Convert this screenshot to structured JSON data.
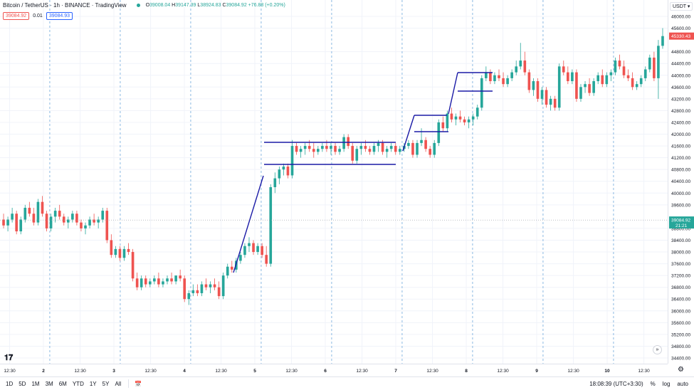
{
  "header": {
    "symbol_title": "Bitcoin / TetherUS · 1h · BINANCE · TradingView",
    "ohlc": {
      "o": "39008.04",
      "h": "39147.39",
      "l": "38924.83",
      "c": "39084.92",
      "change": "+76.88 (+0.20%)"
    },
    "sell_price": "39084.92",
    "spread": "0.01",
    "buy_price": "39084.93",
    "currency": "USDT"
  },
  "colors": {
    "up": "#26a69a",
    "down": "#ef5350",
    "drawing": "#1a1aa6",
    "grid": "#f0f3fa",
    "session": "#6fa8dc"
  },
  "price_axis": {
    "ticks": [
      "46000.00",
      "45600.00",
      "44800.00",
      "44400.00",
      "44000.00",
      "43600.00",
      "43200.00",
      "42800.00",
      "42400.00",
      "42000.00",
      "41600.00",
      "41200.00",
      "40800.00",
      "40400.00",
      "40000.00",
      "39600.00",
      "38800.00",
      "38400.00",
      "38000.00",
      "37600.00",
      "37200.00",
      "36800.00",
      "36400.00",
      "36000.00",
      "35600.00",
      "35200.00",
      "34800.00",
      "34400.00"
    ],
    "last_price_tag": "45330.43",
    "crosshair_price": "39084.92",
    "crosshair_time": "21:21"
  },
  "time_axis": {
    "labels": [
      {
        "t": "12:30",
        "h": 12.5
      },
      {
        "t": "2",
        "h": 24
      },
      {
        "t": "12:30",
        "h": 36.5
      },
      {
        "t": "3",
        "h": 48
      },
      {
        "t": "12:30",
        "h": 60.5
      },
      {
        "t": "4",
        "h": 72
      },
      {
        "t": "12:30",
        "h": 84.5
      },
      {
        "t": "5",
        "h": 96
      },
      {
        "t": "12:30",
        "h": 108.5
      },
      {
        "t": "6",
        "h": 120
      },
      {
        "t": "12:30",
        "h": 132.5
      },
      {
        "t": "7",
        "h": 144
      },
      {
        "t": "12:30",
        "h": 156.5
      },
      {
        "t": "8",
        "h": 168
      },
      {
        "t": "12:30",
        "h": 180.5
      },
      {
        "t": "9",
        "h": 192
      },
      {
        "t": "12:30",
        "h": 204.5
      },
      {
        "t": "10",
        "h": 216
      },
      {
        "t": "12:30",
        "h": 228.5
      }
    ]
  },
  "bottom_bar": {
    "timeframes": [
      "1D",
      "5D",
      "1M",
      "3M",
      "6M",
      "YTD",
      "1Y",
      "5Y",
      "All"
    ],
    "clock": "18:08:39 (UTC+3:30)",
    "percent": "%",
    "log": "log",
    "auto": "auto"
  },
  "chart_data": {
    "type": "candlestick",
    "symbol": "Bitcoin / TetherUS",
    "interval": "1h",
    "ylim": [
      34000,
      46600
    ],
    "x_unit": "hours",
    "candles": [
      [
        39100,
        39300,
        38800,
        38900
      ],
      [
        38900,
        39200,
        38700,
        39100
      ],
      [
        39100,
        39500,
        39000,
        39300
      ],
      [
        39300,
        39400,
        38600,
        38700
      ],
      [
        38700,
        39200,
        38600,
        39100
      ],
      [
        39100,
        39600,
        39000,
        39500
      ],
      [
        39500,
        39700,
        39200,
        39300
      ],
      [
        39300,
        39500,
        38900,
        39000
      ],
      [
        39000,
        39800,
        38900,
        39700
      ],
      [
        39700,
        39900,
        39200,
        39300
      ],
      [
        39300,
        39400,
        38700,
        38800
      ],
      [
        38800,
        39300,
        38700,
        39200
      ],
      [
        39200,
        39500,
        39000,
        39400
      ],
      [
        39400,
        39600,
        39100,
        39200
      ],
      [
        39200,
        39300,
        38900,
        39000
      ],
      [
        39000,
        39200,
        38800,
        39100
      ],
      [
        39100,
        39400,
        39000,
        39300
      ],
      [
        39300,
        39400,
        38900,
        39000
      ],
      [
        39000,
        39100,
        38700,
        38800
      ],
      [
        38800,
        39000,
        38600,
        38900
      ],
      [
        38900,
        39200,
        38800,
        39100
      ],
      [
        39100,
        39300,
        38900,
        39000
      ],
      [
        39000,
        39200,
        38800,
        39100
      ],
      [
        39100,
        39500,
        39000,
        39400
      ],
      [
        39400,
        39500,
        38300,
        38400
      ],
      [
        38400,
        38600,
        37800,
        37900
      ],
      [
        37900,
        38200,
        37800,
        38100
      ],
      [
        38100,
        38200,
        37700,
        37800
      ],
      [
        37800,
        38200,
        37700,
        38100
      ],
      [
        38100,
        38300,
        37900,
        38000
      ],
      [
        38000,
        38100,
        37000,
        37100
      ],
      [
        37100,
        37300,
        36700,
        36800
      ],
      [
        36800,
        37200,
        36700,
        37100
      ],
      [
        37100,
        37200,
        36800,
        36900
      ],
      [
        36900,
        37100,
        36800,
        37000
      ],
      [
        37000,
        37200,
        36900,
        37100
      ],
      [
        37100,
        37300,
        36800,
        36900
      ],
      [
        36900,
        37100,
        36800,
        37000
      ],
      [
        37000,
        37200,
        36900,
        37100
      ],
      [
        37100,
        37300,
        36900,
        37000
      ],
      [
        37000,
        37200,
        36900,
        37200
      ],
      [
        37200,
        37400,
        37000,
        37100
      ],
      [
        37100,
        37200,
        36300,
        36400
      ],
      [
        36400,
        36700,
        36200,
        36600
      ],
      [
        36600,
        36900,
        36500,
        36700
      ],
      [
        36700,
        36900,
        36500,
        36600
      ],
      [
        36600,
        37000,
        36500,
        36900
      ],
      [
        36900,
        37100,
        36700,
        36800
      ],
      [
        36800,
        37000,
        36600,
        36900
      ],
      [
        36900,
        37100,
        36700,
        36800
      ],
      [
        36800,
        37000,
        36400,
        36500
      ],
      [
        36500,
        37300,
        36400,
        37200
      ],
      [
        37200,
        37600,
        37100,
        37500
      ],
      [
        37500,
        37700,
        37300,
        37400
      ],
      [
        37400,
        37800,
        37300,
        37700
      ],
      [
        37700,
        38000,
        37600,
        37900
      ],
      [
        37900,
        38300,
        37800,
        38200
      ],
      [
        38200,
        38500,
        38000,
        38300
      ],
      [
        38300,
        38400,
        37900,
        38000
      ],
      [
        38000,
        38300,
        37900,
        38200
      ],
      [
        38200,
        38300,
        37800,
        37900
      ],
      [
        37900,
        38200,
        37500,
        37600
      ],
      [
        37600,
        40300,
        37500,
        40200
      ],
      [
        40200,
        40700,
        40000,
        40500
      ],
      [
        40500,
        40900,
        40300,
        40800
      ],
      [
        40800,
        41000,
        40600,
        40900
      ],
      [
        40900,
        41000,
        40500,
        40600
      ],
      [
        40600,
        41800,
        40500,
        41600
      ],
      [
        41600,
        41700,
        41300,
        41400
      ],
      [
        41400,
        41600,
        41200,
        41500
      ],
      [
        41500,
        41700,
        41300,
        41600
      ],
      [
        41600,
        41800,
        41400,
        41500
      ],
      [
        41500,
        41700,
        41200,
        41400
      ],
      [
        41400,
        41600,
        41300,
        41500
      ],
      [
        41500,
        41700,
        41400,
        41600
      ],
      [
        41600,
        41800,
        41400,
        41500
      ],
      [
        41500,
        41700,
        41300,
        41600
      ],
      [
        41600,
        41700,
        41300,
        41400
      ],
      [
        41400,
        41600,
        41300,
        41500
      ],
      [
        41500,
        42000,
        41400,
        41900
      ],
      [
        41900,
        42000,
        41500,
        41600
      ],
      [
        41600,
        41700,
        41000,
        41100
      ],
      [
        41100,
        41600,
        41000,
        41500
      ],
      [
        41500,
        41700,
        41300,
        41600
      ],
      [
        41600,
        41800,
        41400,
        41500
      ],
      [
        41500,
        41600,
        41300,
        41400
      ],
      [
        41400,
        41700,
        41300,
        41600
      ],
      [
        41600,
        41800,
        41400,
        41700
      ],
      [
        41700,
        41800,
        41300,
        41400
      ],
      [
        41400,
        41600,
        41200,
        41500
      ],
      [
        41500,
        41700,
        41400,
        41600
      ],
      [
        41600,
        41700,
        41300,
        41400
      ],
      [
        41400,
        41600,
        41300,
        41500
      ],
      [
        41500,
        41700,
        41400,
        41600
      ],
      [
        41600,
        41800,
        41500,
        41700
      ],
      [
        41700,
        41800,
        41200,
        41300
      ],
      [
        41300,
        41800,
        41200,
        41700
      ],
      [
        41700,
        42200,
        41600,
        41800
      ],
      [
        41800,
        41900,
        41400,
        41500
      ],
      [
        41500,
        41600,
        41200,
        41300
      ],
      [
        41300,
        41800,
        41200,
        41700
      ],
      [
        41700,
        42500,
        41600,
        42400
      ],
      [
        42400,
        42600,
        42100,
        42200
      ],
      [
        42200,
        42800,
        42100,
        42700
      ],
      [
        42700,
        42900,
        42400,
        42500
      ],
      [
        42500,
        42700,
        42300,
        42600
      ],
      [
        42600,
        42800,
        42400,
        42500
      ],
      [
        42500,
        42600,
        42300,
        42400
      ],
      [
        42400,
        42600,
        42200,
        42500
      ],
      [
        42500,
        42700,
        42300,
        42600
      ],
      [
        42600,
        43000,
        42500,
        42900
      ],
      [
        42900,
        44000,
        42800,
        43900
      ],
      [
        43900,
        44300,
        43800,
        44100
      ],
      [
        44100,
        44200,
        43700,
        43800
      ],
      [
        43800,
        44100,
        43700,
        44000
      ],
      [
        44000,
        44200,
        43800,
        43900
      ],
      [
        43900,
        44100,
        43600,
        43700
      ],
      [
        43700,
        44000,
        43600,
        43900
      ],
      [
        43900,
        44200,
        43800,
        44100
      ],
      [
        44100,
        44500,
        44000,
        44300
      ],
      [
        44300,
        45100,
        44200,
        44500
      ],
      [
        44500,
        44800,
        44000,
        44100
      ],
      [
        44100,
        44200,
        43400,
        43500
      ],
      [
        43500,
        43900,
        43300,
        43800
      ],
      [
        43800,
        43900,
        43100,
        43200
      ],
      [
        43200,
        43600,
        43000,
        43500
      ],
      [
        43500,
        43600,
        42900,
        43000
      ],
      [
        43000,
        43300,
        42800,
        43200
      ],
      [
        43200,
        43300,
        42800,
        42900
      ],
      [
        42900,
        44400,
        42800,
        44300
      ],
      [
        44300,
        44500,
        44000,
        44100
      ],
      [
        44100,
        44300,
        43700,
        43800
      ],
      [
        43800,
        44200,
        43700,
        44100
      ],
      [
        44100,
        44200,
        43100,
        43200
      ],
      [
        43200,
        43700,
        43100,
        43600
      ],
      [
        43600,
        43800,
        43400,
        43700
      ],
      [
        43700,
        43900,
        43300,
        43400
      ],
      [
        43400,
        43900,
        43300,
        43800
      ],
      [
        43800,
        44100,
        43700,
        44000
      ],
      [
        44000,
        44200,
        43600,
        43700
      ],
      [
        43700,
        44100,
        43600,
        44000
      ],
      [
        44000,
        44200,
        43800,
        44100
      ],
      [
        44100,
        44600,
        44000,
        44500
      ],
      [
        44500,
        44700,
        44200,
        44300
      ],
      [
        44300,
        44500,
        43900,
        44000
      ],
      [
        44000,
        44200,
        43800,
        43900
      ],
      [
        43900,
        44100,
        43500,
        43600
      ],
      [
        43600,
        43800,
        43500,
        43700
      ],
      [
        43700,
        44000,
        43600,
        43900
      ],
      [
        43900,
        44300,
        43800,
        44200
      ],
      [
        44200,
        44700,
        44100,
        44600
      ],
      [
        44600,
        44800,
        43800,
        43900
      ],
      [
        43900,
        45200,
        43200,
        45000
      ],
      [
        45000,
        45600,
        44900,
        45330
      ]
    ]
  }
}
